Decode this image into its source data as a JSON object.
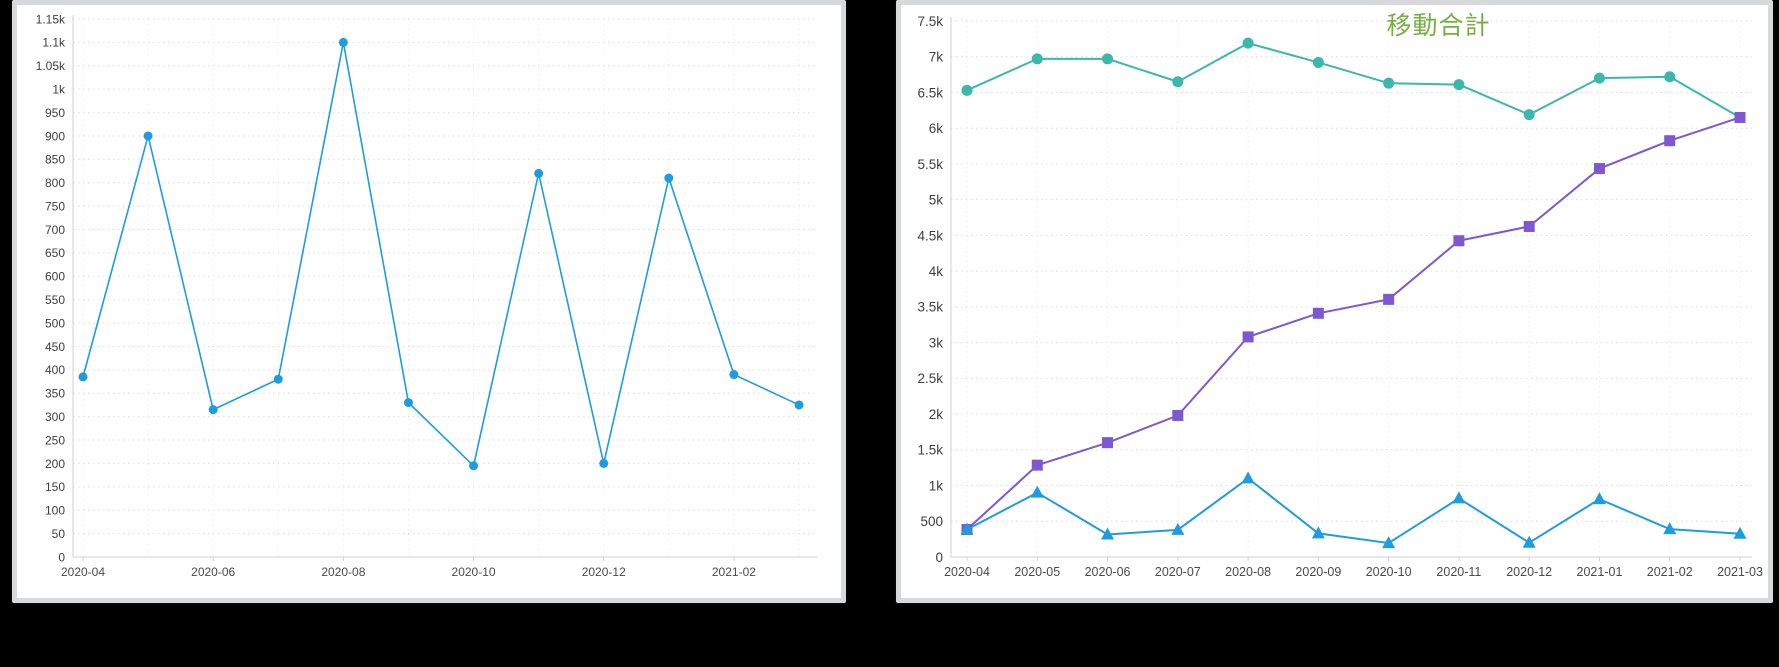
{
  "page": {
    "background_color": "#000000",
    "card_color": "#ffffff",
    "card_frame_color": "#d7d9db"
  },
  "chart_data": [
    {
      "type": "line",
      "title": "",
      "x": [
        "2020-04",
        "2020-05",
        "2020-06",
        "2020-07",
        "2020-08",
        "2020-09",
        "2020-10",
        "2020-11",
        "2020-12",
        "2021-01",
        "2021-02",
        "2021-03"
      ],
      "xtick_every": 2,
      "xticks_shown": [
        "2020-04",
        "2020-06",
        "2020-08",
        "2020-10",
        "2020-12",
        "2021-02"
      ],
      "ylim": [
        0,
        1150
      ],
      "ytick_step": 50,
      "yticks_shown": [
        "0",
        "50",
        "100",
        "150",
        "200",
        "250",
        "300",
        "350",
        "400",
        "450",
        "500",
        "550",
        "600",
        "650",
        "700",
        "750",
        "800",
        "850",
        "900",
        "950",
        "1k",
        "1.05k",
        "1.1k",
        "1.15k"
      ],
      "grid": "dotted-horizontal-and-faint-vertical",
      "legend": "none",
      "series": [
        {
          "name": "monthly-value",
          "marker": "circle",
          "color": "#1e9ce0",
          "values": [
            385,
            900,
            315,
            380,
            1100,
            330,
            195,
            820,
            200,
            810,
            390,
            325
          ]
        }
      ]
    },
    {
      "type": "line",
      "title": "移動合計",
      "title_color": "#76b043",
      "x": [
        "2020-04",
        "2020-05",
        "2020-06",
        "2020-07",
        "2020-08",
        "2020-09",
        "2020-10",
        "2020-11",
        "2020-12",
        "2021-01",
        "2021-02",
        "2021-03"
      ],
      "xtick_every": 1,
      "ylim": [
        0,
        7500
      ],
      "ytick_step": 500,
      "yticks_shown": [
        "0",
        "500",
        "1k",
        "1.5k",
        "2k",
        "2.5k",
        "3k",
        "3.5k",
        "4k",
        "4.5k",
        "5k",
        "5.5k",
        "6k",
        "6.5k",
        "7k",
        "7.5k"
      ],
      "grid": "dotted-horizontal-and-faint-vertical",
      "legend": "none",
      "series": [
        {
          "name": "moving-total",
          "marker": "circle",
          "color": "#3bb7ac",
          "values": [
            6530,
            6970,
            6970,
            6650,
            7190,
            6920,
            6630,
            6610,
            6190,
            6700,
            6720,
            6150
          ]
        },
        {
          "name": "cumulative-total",
          "marker": "square",
          "color": "#7d58d3",
          "values": [
            385,
            1285,
            1600,
            1980,
            3080,
            3410,
            3605,
            4425,
            4625,
            5435,
            5825,
            6150
          ]
        },
        {
          "name": "monthly-value",
          "marker": "triangle",
          "color": "#1e9ce0",
          "values": [
            385,
            900,
            315,
            380,
            1100,
            330,
            195,
            820,
            200,
            810,
            390,
            325
          ]
        }
      ]
    }
  ]
}
